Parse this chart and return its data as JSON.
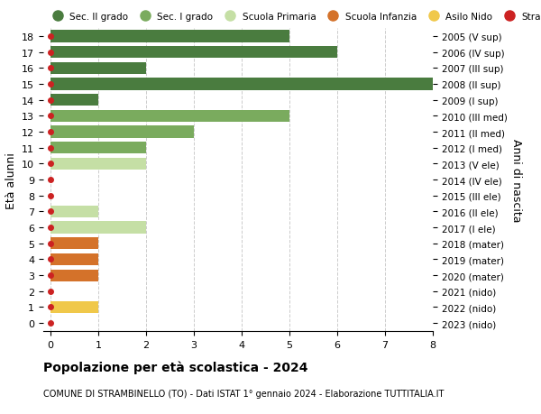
{
  "ages": [
    18,
    17,
    16,
    15,
    14,
    13,
    12,
    11,
    10,
    9,
    8,
    7,
    6,
    5,
    4,
    3,
    2,
    1,
    0
  ],
  "years": [
    "2005 (V sup)",
    "2006 (IV sup)",
    "2007 (III sup)",
    "2008 (II sup)",
    "2009 (I sup)",
    "2010 (III med)",
    "2011 (II med)",
    "2012 (I med)",
    "2013 (V ele)",
    "2014 (IV ele)",
    "2015 (III ele)",
    "2016 (II ele)",
    "2017 (I ele)",
    "2018 (mater)",
    "2019 (mater)",
    "2020 (mater)",
    "2021 (nido)",
    "2022 (nido)",
    "2023 (nido)"
  ],
  "categories": {
    "sec2": {
      "label": "Sec. II grado",
      "color": "#4a7c3f",
      "ages": [
        18,
        17,
        16,
        15,
        14
      ]
    },
    "sec1": {
      "label": "Sec. I grado",
      "color": "#7aab5e",
      "ages": [
        13,
        12,
        11
      ]
    },
    "primaria": {
      "label": "Scuola Primaria",
      "color": "#c5dfa5",
      "ages": [
        10,
        9,
        8,
        7,
        6
      ]
    },
    "infanzia": {
      "label": "Scuola Infanzia",
      "color": "#d4722a",
      "ages": [
        5,
        4,
        3
      ]
    },
    "nido": {
      "label": "Asilo Nido",
      "color": "#f0c84a",
      "ages": [
        2,
        1,
        0
      ]
    }
  },
  "values": {
    "18": 5,
    "17": 6,
    "16": 2,
    "15": 8,
    "14": 1,
    "13": 5,
    "12": 3,
    "11": 2,
    "10": 2,
    "9": 0,
    "8": 0,
    "7": 1,
    "6": 2,
    "5": 1,
    "4": 1,
    "3": 1,
    "2": 0,
    "1": 1,
    "0": 0
  },
  "stranieri_color": "#cc2222",
  "background_color": "#ffffff",
  "title": "Popolazione per età scolastica - 2024",
  "subtitle": "COMUNE DI STRAMBINELLO (TO) - Dati ISTAT 1° gennaio 2024 - Elaborazione TUTTITALIA.IT",
  "ylabel": "Età alunni",
  "right_ylabel": "Anni di nascita",
  "xlim_max": 8,
  "grid_color": "#cccccc"
}
